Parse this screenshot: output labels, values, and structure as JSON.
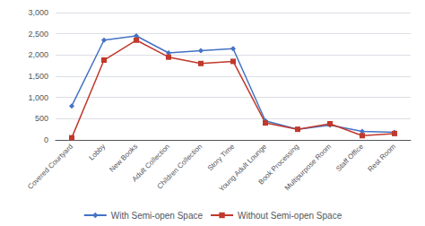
{
  "chart_data": {
    "type": "line",
    "categories": [
      "Covered Courtyard",
      "Lobby",
      "New Books",
      "Adult Collection",
      "Children Collection",
      "Story Time",
      "Young Adult Lounge",
      "Book Processing",
      "Multipurpose Room",
      "Staff Office",
      "Rest Room"
    ],
    "series": [
      {
        "name": "With Semi-open Space",
        "color": "#4472c4",
        "marker": "diamond",
        "values": [
          800,
          2350,
          2450,
          2050,
          2100,
          2150,
          450,
          250,
          350,
          200,
          180
        ]
      },
      {
        "name": "Without Semi-open Space",
        "color": "#c0392b",
        "marker": "square",
        "values": [
          50,
          1880,
          2350,
          1950,
          1800,
          1850,
          400,
          250,
          380,
          100,
          150
        ]
      }
    ],
    "ylim": [
      0,
      3000
    ],
    "yticks": [
      0,
      500,
      1000,
      1500,
      2000,
      2500,
      3000
    ],
    "grid": true,
    "legend": "bottom"
  }
}
